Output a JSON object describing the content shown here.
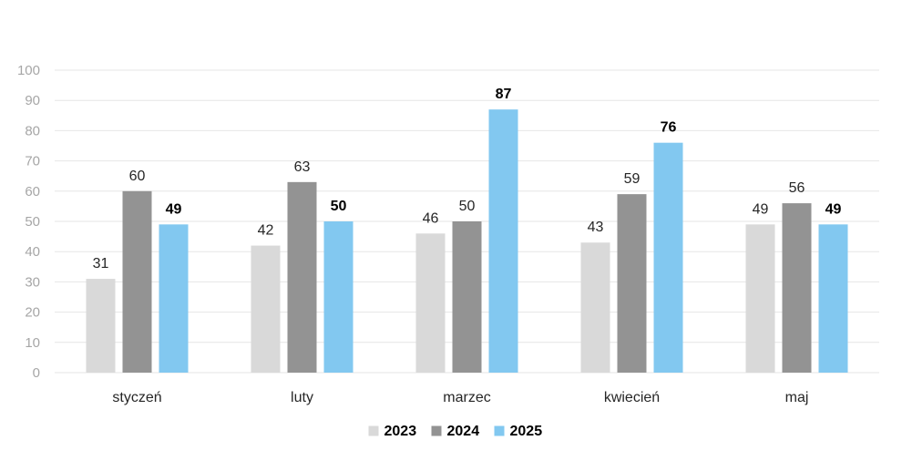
{
  "chart_data": {
    "type": "bar",
    "categories": [
      "styczeń",
      "luty",
      "marzec",
      "kwiecień",
      "maj"
    ],
    "series": [
      {
        "name": "2023",
        "values": [
          31,
          42,
          46,
          43,
          49
        ],
        "color": "#d9d9d9",
        "label_bold": false
      },
      {
        "name": "2024",
        "values": [
          60,
          63,
          50,
          59,
          56
        ],
        "color": "#939393",
        "label_bold": false
      },
      {
        "name": "2025",
        "values": [
          49,
          50,
          87,
          76,
          49
        ],
        "color": "#82c8f0",
        "label_bold": true
      }
    ],
    "yticks": [
      "0",
      "10",
      "20",
      "30",
      "40",
      "50",
      "60",
      "70",
      "80",
      "90",
      "100"
    ],
    "ylim": [
      0,
      100
    ],
    "grid": true,
    "legend_position": "bottom-center",
    "data_labels": true
  }
}
